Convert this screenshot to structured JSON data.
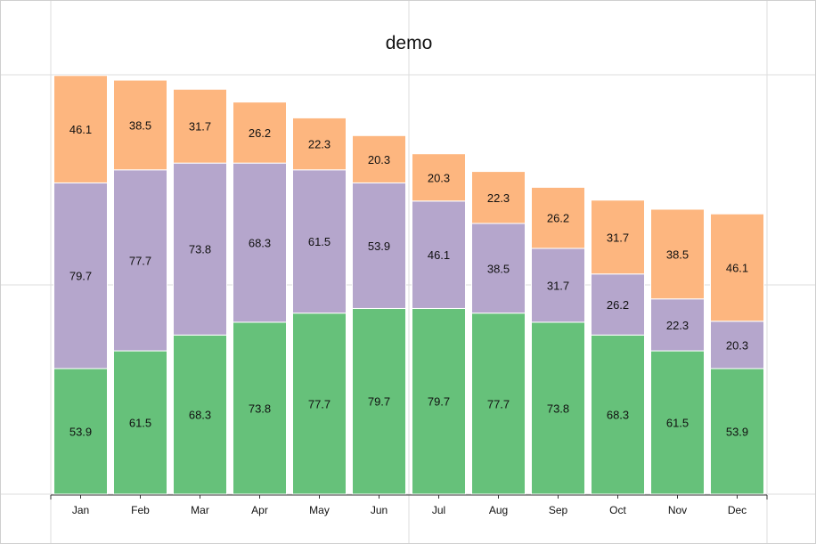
{
  "chart_data": {
    "type": "bar",
    "stacked": true,
    "title": "demo",
    "xlabel": "",
    "ylabel": "",
    "categories": [
      "Jan",
      "Feb",
      "Mar",
      "Apr",
      "May",
      "Jun",
      "Jul",
      "Aug",
      "Sep",
      "Oct",
      "Nov",
      "Dec"
    ],
    "ylim": [
      0,
      180
    ],
    "grid": true,
    "legend": "none",
    "series": [
      {
        "color": "#66c17a",
        "values": [
          53.9,
          61.5,
          68.3,
          73.8,
          77.7,
          79.7,
          79.7,
          77.7,
          73.8,
          68.3,
          61.5,
          53.9
        ]
      },
      {
        "color": "#b5a6cc",
        "values": [
          79.7,
          77.7,
          73.8,
          68.3,
          61.5,
          53.9,
          46.1,
          38.5,
          31.7,
          26.2,
          22.3,
          20.3
        ]
      },
      {
        "color": "#fdb67f",
        "values": [
          46.1,
          38.5,
          31.7,
          26.2,
          22.3,
          20.3,
          20.3,
          22.3,
          26.2,
          31.7,
          38.5,
          46.1
        ]
      }
    ]
  }
}
